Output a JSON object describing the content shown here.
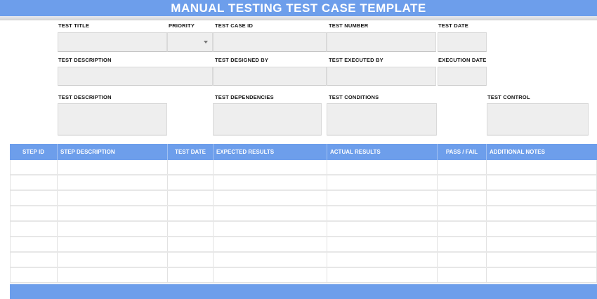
{
  "title": "MANUAL TESTING TEST CASE TEMPLATE",
  "colors": {
    "accent_blue": "#6d9eeb",
    "field_bg": "#eeeeee",
    "field_border": "#d9d9d9",
    "grid_border": "#e2e2e2"
  },
  "form": {
    "test_title": {
      "label": "TEST TITLE",
      "value": ""
    },
    "priority": {
      "label": "PRIORITY",
      "value": "",
      "icon": "dropdown-arrow"
    },
    "test_case_id": {
      "label": "TEST CASE ID",
      "value": ""
    },
    "test_number": {
      "label": "TEST NUMBER",
      "value": ""
    },
    "test_date": {
      "label": "TEST DATE",
      "value": ""
    },
    "test_description": {
      "label": "TEST DESCRIPTION",
      "value": ""
    },
    "test_designed_by": {
      "label": "TEST DESIGNED BY",
      "value": ""
    },
    "test_executed_by": {
      "label": "TEST EXECUTED BY",
      "value": ""
    },
    "execution_date": {
      "label": "EXECUTION DATE",
      "value": ""
    },
    "test_description2": {
      "label": "TEST DESCRIPTION",
      "value": ""
    },
    "test_dependencies": {
      "label": "TEST DEPENDENCIES",
      "value": ""
    },
    "test_conditions": {
      "label": "TEST CONDITIONS",
      "value": ""
    },
    "test_control": {
      "label": "TEST CONTROL",
      "value": ""
    }
  },
  "table": {
    "columns": [
      {
        "label": "STEP ID"
      },
      {
        "label": "STEP DESCRIPTION"
      },
      {
        "label": "TEST DATE"
      },
      {
        "label": "EXPECTED RESULTS"
      },
      {
        "label": "ACTUAL RESULTS"
      },
      {
        "label": "PASS / FAIL"
      },
      {
        "label": "ADDITIONAL NOTES"
      }
    ],
    "empty_row_count": 8
  }
}
